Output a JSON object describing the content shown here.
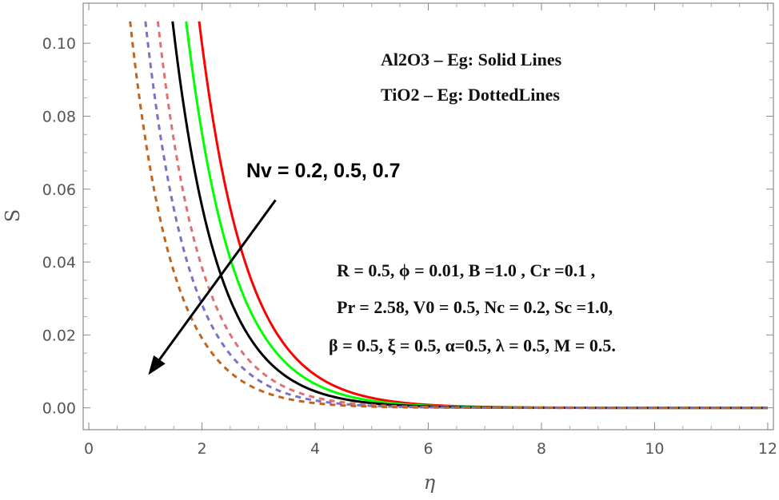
{
  "chart_data": {
    "type": "line",
    "title": "",
    "xlabel": "η",
    "ylabel": "S",
    "xlim": [
      -0.1,
      12.1
    ],
    "ylim": [
      -0.006,
      0.111
    ],
    "xticks": [
      0,
      2,
      4,
      6,
      8,
      10,
      12
    ],
    "xtick_labels": [
      "0",
      "2",
      "4",
      "6",
      "8",
      "10",
      "12"
    ],
    "yticks": [
      0.0,
      0.02,
      0.04,
      0.06,
      0.08,
      0.1
    ],
    "ytick_labels": [
      "0.00",
      "0.02",
      "0.04",
      "0.06",
      "0.08",
      "0.10"
    ],
    "series": [
      {
        "name": "Al2O3 – Eg, Nv = 0.2",
        "style": "solid",
        "color": "#ff0000",
        "start_x": 1.95,
        "decay": 1.2,
        "x_end": 12
      },
      {
        "name": "Al2O3 – Eg, Nv = 0.5",
        "style": "solid",
        "color": "#00ff00",
        "start_x": 1.72,
        "decay": 1.22,
        "x_end": 12
      },
      {
        "name": "Al2O3 – Eg, Nv = 0.7",
        "style": "solid",
        "color": "#000000",
        "start_x": 1.48,
        "decay": 1.25,
        "x_end": 12
      },
      {
        "name": "TiO2 – Eg, Nv = 0.2",
        "style": "dashed",
        "color": "#e07070",
        "start_x": 1.22,
        "decay": 1.3,
        "x_end": 12
      },
      {
        "name": "TiO2 – Eg, Nv = 0.5",
        "style": "dashed",
        "color": "#7b72c4",
        "start_x": 1.0,
        "decay": 1.32,
        "x_end": 12
      },
      {
        "name": "TiO2 – Eg, Nv = 0.7",
        "style": "dashed",
        "color": "#c0651f",
        "start_x": 0.73,
        "decay": 1.35,
        "x_end": 12
      }
    ],
    "start_value": 0.106,
    "annotations": {
      "legend_solid": "Al2O3 – Eg: Solid Lines",
      "legend_dotted": "TiO2 – Eg: DottedLines",
      "param_label": "Nv =  0.2, 0.5, 0.7",
      "params_line1": "R = 0.5, ϕ = 0.01, B =1.0 , Cr =0.1 ,",
      "params_line2": "Pr = 2.58, V0 = 0.5, Nc = 0.2, Sc =1.0,",
      "params_line3": "β = 0.5, ξ = 0.5,  α=0.5, λ = 0.5, M = 0.5."
    },
    "arrow": {
      "from": [
        3.3,
        0.057
      ],
      "to": [
        1.05,
        0.009
      ],
      "color": "#000000"
    }
  }
}
